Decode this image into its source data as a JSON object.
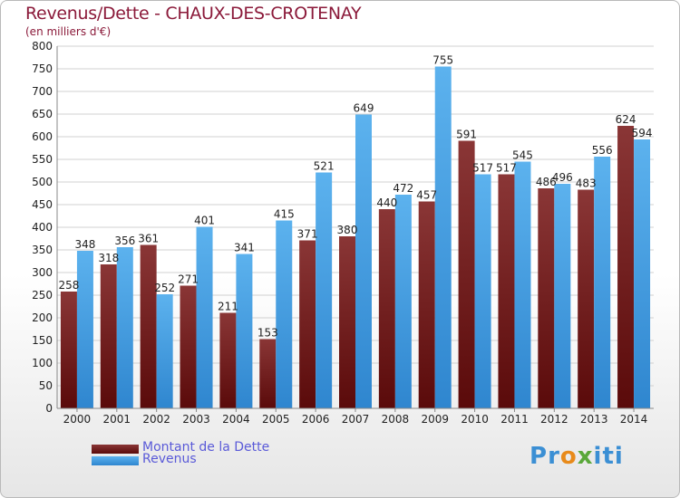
{
  "header": {
    "title": "Revenus/Dette - CHAUX-DES-CROTENAY",
    "subtitle": "(en milliers d'€)"
  },
  "legend": [
    {
      "label": "Montant de la Dette",
      "color": "#7a1f1f"
    },
    {
      "label": "Revenus",
      "color": "#4ea3e6"
    }
  ],
  "brand": "Proxiti",
  "colors": {
    "dette_dark": "#5a0a0a",
    "dette_light": "#8a3636",
    "revenus_dark": "#2f86cf",
    "revenus_light": "#5cb2ee",
    "grid": "#d0d0d0",
    "axis_text": "#222222"
  },
  "chart_data": {
    "type": "bar",
    "title": "Revenus/Dette - CHAUX-DES-CROTENAY",
    "subtitle": "(en milliers d'€)",
    "categories": [
      "2000",
      "2001",
      "2002",
      "2003",
      "2004",
      "2005",
      "2006",
      "2007",
      "2008",
      "2009",
      "2010",
      "2011",
      "2012",
      "2013",
      "2014"
    ],
    "series": [
      {
        "name": "Montant de la Dette",
        "values": [
          258,
          318,
          361,
          271,
          211,
          153,
          371,
          380,
          440,
          457,
          591,
          517,
          486,
          483,
          624
        ]
      },
      {
        "name": "Revenus",
        "values": [
          348,
          356,
          252,
          401,
          341,
          415,
          521,
          649,
          472,
          755,
          517,
          545,
          496,
          556,
          594
        ]
      }
    ],
    "yticks": [
      0,
      50,
      100,
      150,
      200,
      250,
      300,
      350,
      400,
      450,
      500,
      550,
      600,
      650,
      700,
      750,
      800
    ],
    "ylim": [
      0,
      800
    ],
    "grid": true,
    "legend_position": "bottom-left"
  }
}
